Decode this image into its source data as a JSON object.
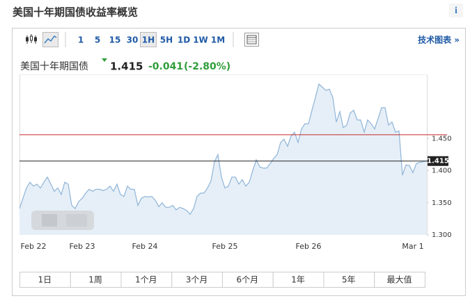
{
  "header": {
    "title": "美国十年期国债收益率概览",
    "info": "i"
  },
  "toolbar": {
    "intervals": [
      "1",
      "5",
      "15",
      "30",
      "1H",
      "5H",
      "1D",
      "1W",
      "1M"
    ],
    "selected_interval_index": 4,
    "link": "技术图表 »"
  },
  "quote": {
    "name": "美国十年期国债",
    "price": "1.415",
    "change": "-0.041",
    "change_percent": "(-2.80%)"
  },
  "ranges": [
    "1日",
    "1周",
    "1个月",
    "3个月",
    "6个月",
    "1年",
    "5年",
    "最大值"
  ],
  "chart_data": {
    "type": "area",
    "color": "#8fb4d8",
    "fill": "#e6eff7",
    "categories": [
      null,
      null,
      null,
      null,
      "Feb 22",
      null,
      null,
      null,
      null,
      null,
      null,
      null,
      null,
      null,
      null,
      null,
      null,
      null,
      "Feb 23",
      null,
      null,
      null,
      null,
      null,
      null,
      null,
      null,
      null,
      null,
      null,
      null,
      null,
      null,
      null,
      null,
      null,
      "Feb 24",
      null,
      null,
      null,
      null,
      null,
      null,
      null,
      null,
      null,
      null,
      null,
      null,
      null,
      null,
      null,
      null,
      null,
      null,
      null,
      null,
      null,
      null,
      "Feb 25",
      null,
      null,
      null,
      null,
      null,
      null,
      null,
      null,
      null,
      null,
      null,
      null,
      null,
      null,
      null,
      null,
      null,
      null,
      null,
      null,
      null,
      null,
      null,
      "Feb 26",
      null,
      null,
      null,
      null,
      null,
      null,
      null,
      null,
      null,
      null,
      null,
      null,
      null,
      null,
      null,
      null,
      null,
      null,
      null,
      null,
      null,
      null,
      null,
      null,
      null,
      null,
      null,
      null,
      null,
      "Mar 1",
      null,
      null,
      null,
      null
    ],
    "values": [
      1.341,
      1.357,
      1.373,
      1.382,
      1.376,
      1.379,
      1.373,
      1.382,
      1.39,
      1.379,
      1.368,
      1.373,
      1.363,
      1.382,
      1.379,
      1.346,
      1.341,
      1.352,
      1.357,
      1.365,
      1.371,
      1.368,
      1.371,
      1.371,
      1.369,
      1.371,
      1.376,
      1.368,
      1.379,
      1.363,
      1.36,
      1.376,
      1.371,
      1.371,
      1.346,
      1.357,
      1.36,
      1.359,
      1.36,
      1.354,
      1.344,
      1.35,
      1.343,
      1.343,
      1.346,
      1.339,
      1.343,
      1.341,
      1.338,
      1.332,
      1.341,
      1.36,
      1.365,
      1.365,
      1.373,
      1.384,
      1.414,
      1.425,
      1.39,
      1.373,
      1.376,
      1.39,
      1.39,
      1.379,
      1.386,
      1.376,
      1.382,
      1.4,
      1.417,
      1.406,
      1.404,
      1.404,
      1.411,
      1.419,
      1.425,
      1.444,
      1.449,
      1.438,
      1.454,
      1.46,
      1.444,
      1.465,
      1.473,
      1.473,
      1.494,
      1.514,
      1.535,
      1.53,
      1.525,
      1.527,
      1.514,
      1.476,
      1.492,
      1.467,
      1.471,
      1.49,
      1.494,
      1.479,
      1.479,
      1.46,
      1.479,
      1.473,
      1.465,
      1.481,
      1.498,
      1.498,
      1.471,
      1.476,
      1.46,
      1.462,
      1.393,
      1.409,
      1.408,
      1.397,
      1.411,
      1.413,
      1.414,
      1.415
    ],
    "ylim": [
      1.3,
      1.55
    ],
    "yticks": [
      {
        "value": 1.3,
        "label": "1.300"
      },
      {
        "value": 1.35,
        "label": "1.350"
      },
      {
        "value": 1.4,
        "label": "1.400"
      },
      {
        "value": 1.45,
        "label": "1.450"
      }
    ],
    "reference_lines": [
      {
        "value": 1.456,
        "color": "#c62828"
      },
      {
        "value": 1.415,
        "color": "#222222"
      }
    ],
    "grid": false
  }
}
